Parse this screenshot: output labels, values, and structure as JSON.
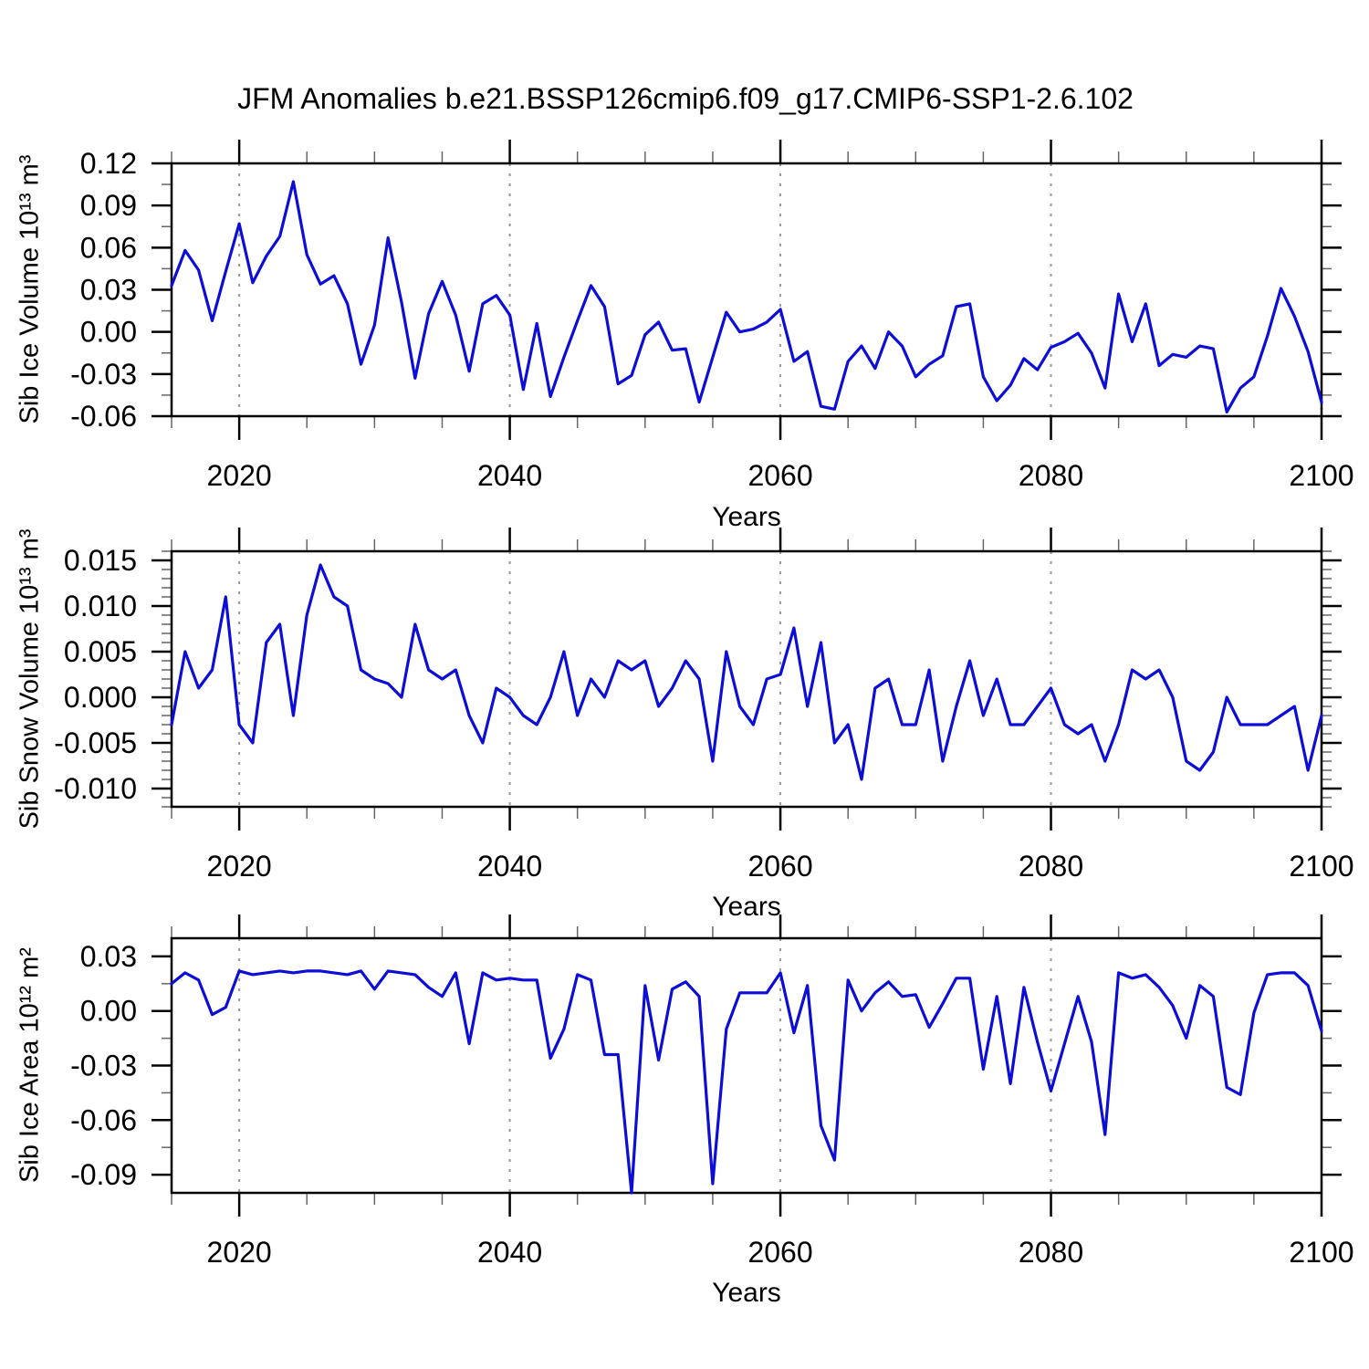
{
  "title": "JFM Anomalies b.e21.BSSP126cmip6.f09_g17.CMIP6-SSP1-2.6.102",
  "colors": {
    "line": "#0d0dd8",
    "frame": "#000000",
    "grid": "#999999",
    "major_tick": "#000000",
    "minor_tick": "#666666",
    "text": "#000000"
  },
  "chart_data": [
    {
      "type": "line",
      "name": "sib-ice-volume",
      "ylabel": "Sib Ice Volume 10¹³ m³",
      "xlabel": "Years",
      "x0": 2015,
      "xlim": [
        2015,
        2100
      ],
      "xticks": [
        2020,
        2040,
        2060,
        2080,
        2100
      ],
      "xminor_step": 5,
      "grid_years": [
        2020,
        2040,
        2060,
        2080
      ],
      "ylim": [
        -0.06,
        0.12
      ],
      "ytick_vals": [
        0.12,
        0.09,
        0.06,
        0.03,
        0.0,
        -0.03,
        -0.06
      ],
      "ytick_labels": [
        "0.12",
        "0.09",
        "0.06",
        "0.03",
        "0.00",
        "-0.03",
        "-0.06"
      ],
      "yminor_step": 0.015,
      "values": [
        0.033,
        0.058,
        0.044,
        0.008,
        0.043,
        0.077,
        0.035,
        0.054,
        0.068,
        0.107,
        0.055,
        0.034,
        0.04,
        0.02,
        -0.023,
        0.005,
        0.067,
        0.021,
        -0.033,
        0.013,
        0.036,
        0.012,
        -0.028,
        0.02,
        0.026,
        0.012,
        -0.041,
        0.006,
        -0.046,
        -0.018,
        0.008,
        0.033,
        0.018,
        -0.037,
        -0.031,
        -0.002,
        0.007,
        -0.013,
        -0.012,
        -0.05,
        -0.018,
        0.014,
        0.0,
        0.002,
        0.007,
        0.016,
        -0.021,
        -0.014,
        -0.053,
        -0.055,
        -0.021,
        -0.01,
        -0.026,
        0.0,
        -0.01,
        -0.032,
        -0.023,
        -0.017,
        0.018,
        0.02,
        -0.032,
        -0.049,
        -0.038,
        -0.019,
        -0.027,
        -0.011,
        -0.007,
        -0.001,
        -0.015,
        -0.04,
        0.027,
        -0.007,
        0.02,
        -0.024,
        -0.016,
        -0.018,
        -0.01,
        -0.012,
        -0.057,
        -0.04,
        -0.032,
        -0.003,
        0.031,
        0.011,
        -0.014,
        -0.05
      ]
    },
    {
      "type": "line",
      "name": "sib-snow-volume",
      "ylabel": "Sib Snow Volume 10¹³ m³",
      "xlabel": "Years",
      "x0": 2015,
      "xlim": [
        2015,
        2100
      ],
      "xticks": [
        2020,
        2040,
        2060,
        2080,
        2100
      ],
      "xminor_step": 5,
      "grid_years": [
        2020,
        2040,
        2060,
        2080
      ],
      "ylim": [
        -0.012,
        0.016
      ],
      "ytick_vals": [
        0.015,
        0.01,
        0.005,
        0.0,
        -0.005,
        -0.01
      ],
      "ytick_labels": [
        "0.015",
        "0.010",
        "0.005",
        "0.000",
        "-0.005",
        "-0.010"
      ],
      "yminor_step": 0.001,
      "values": [
        -0.003,
        0.005,
        0.001,
        0.003,
        0.011,
        -0.003,
        -0.005,
        0.006,
        0.008,
        -0.002,
        0.009,
        0.0145,
        0.011,
        0.01,
        0.003,
        0.002,
        0.0015,
        0.0,
        0.008,
        0.003,
        0.002,
        0.003,
        -0.002,
        -0.005,
        0.001,
        0.0,
        -0.002,
        -0.003,
        0.0,
        0.005,
        -0.002,
        0.002,
        0.0,
        0.004,
        0.003,
        0.004,
        -0.001,
        0.001,
        0.004,
        0.002,
        -0.007,
        0.005,
        -0.001,
        -0.003,
        0.002,
        0.0025,
        0.0076,
        -0.001,
        0.006,
        -0.005,
        -0.003,
        -0.009,
        0.001,
        0.002,
        -0.003,
        -0.003,
        0.003,
        -0.007,
        -0.001,
        0.004,
        -0.002,
        0.002,
        -0.003,
        -0.003,
        -0.001,
        0.001,
        -0.003,
        -0.004,
        -0.003,
        -0.007,
        -0.003,
        0.003,
        0.002,
        0.003,
        0.0,
        -0.007,
        -0.008,
        -0.006,
        0.0,
        -0.003,
        -0.003,
        -0.003,
        -0.002,
        -0.001,
        -0.008,
        -0.002
      ]
    },
    {
      "type": "line",
      "name": "sib-ice-area",
      "ylabel": "Sib Ice Area 10¹² m²",
      "xlabel": "Years",
      "x0": 2015,
      "xlim": [
        2015,
        2100
      ],
      "xticks": [
        2020,
        2040,
        2060,
        2080,
        2100
      ],
      "xminor_step": 5,
      "grid_years": [
        2020,
        2040,
        2060,
        2080
      ],
      "ylim": [
        -0.1,
        0.04
      ],
      "ytick_vals": [
        0.03,
        0.0,
        -0.03,
        -0.06,
        -0.09
      ],
      "ytick_labels": [
        "0.03",
        "0.00",
        "-0.03",
        "-0.06",
        "-0.09"
      ],
      "yminor_step": 0.015,
      "values": [
        0.015,
        0.021,
        0.017,
        -0.002,
        0.002,
        0.022,
        0.02,
        0.021,
        0.022,
        0.021,
        0.022,
        0.022,
        0.021,
        0.02,
        0.022,
        0.012,
        0.022,
        0.021,
        0.02,
        0.013,
        0.008,
        0.021,
        -0.018,
        0.021,
        0.017,
        0.018,
        0.017,
        0.017,
        -0.026,
        -0.01,
        0.02,
        0.017,
        -0.024,
        -0.024,
        -0.1,
        0.014,
        -0.027,
        0.012,
        0.016,
        0.008,
        -0.095,
        -0.01,
        0.01,
        0.01,
        0.01,
        0.021,
        -0.012,
        0.014,
        -0.063,
        -0.082,
        0.017,
        0.0,
        0.01,
        0.016,
        0.008,
        0.009,
        -0.009,
        0.004,
        0.018,
        0.018,
        -0.032,
        0.008,
        -0.04,
        0.013,
        -0.017,
        -0.044,
        -0.018,
        0.008,
        -0.017,
        -0.068,
        0.021,
        0.018,
        0.02,
        0.013,
        0.003,
        -0.015,
        0.014,
        0.008,
        -0.042,
        -0.046,
        -0.001,
        0.02,
        0.021,
        0.021,
        0.014,
        -0.011
      ]
    }
  ]
}
